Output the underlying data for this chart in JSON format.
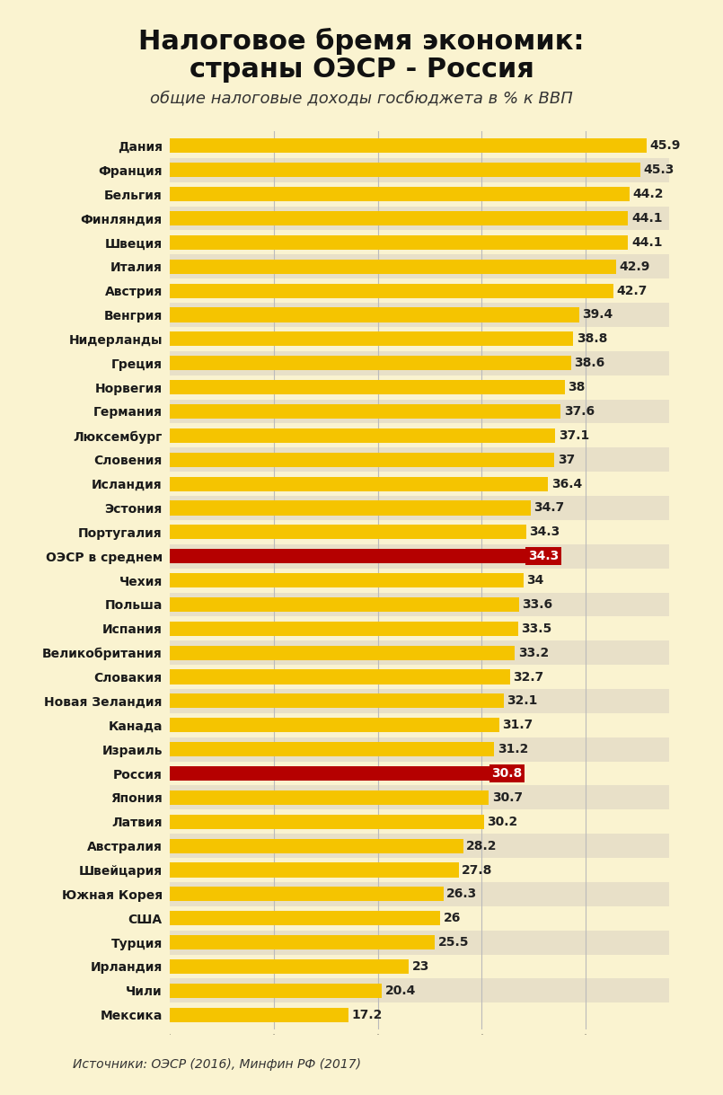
{
  "title_line1": "Налоговое бремя экономик:",
  "title_line2": "страны ОЭСР - Россия",
  "subtitle": "общие налоговые доходы госбюджета в % к ВВП",
  "footer": "Источники: ОЭСР (2016), Минфин РФ (2017)",
  "background_color": "#FAF3D0",
  "bar_color_normal": "#F5C400",
  "bar_color_special": "#B50000",
  "categories": [
    "Дания",
    "Франция",
    "Бельгия",
    "Финляндия",
    "Швеция",
    "Италия",
    "Австрия",
    "Венгрия",
    "Нидерланды",
    "Греция",
    "Норвегия",
    "Германия",
    "Люксембург",
    "Словения",
    "Исландия",
    "Эстония",
    "Португалия",
    "ОЭСР в среднем",
    "Чехия",
    "Польша",
    "Испания",
    "Великобритания",
    "Словакия",
    "Новая Зеландия",
    "Канада",
    "Израиль",
    "Россия",
    "Япония",
    "Латвия",
    "Австралия",
    "Швейцария",
    "Южная Корея",
    "США",
    "Турция",
    "Ирландия",
    "Чили",
    "Мексика"
  ],
  "values": [
    45.9,
    45.3,
    44.2,
    44.1,
    44.1,
    42.9,
    42.7,
    39.4,
    38.8,
    38.6,
    38.0,
    37.6,
    37.1,
    37.0,
    36.4,
    34.7,
    34.3,
    34.3,
    34.0,
    33.6,
    33.5,
    33.2,
    32.7,
    32.1,
    31.7,
    31.2,
    30.8,
    30.7,
    30.2,
    28.2,
    27.8,
    26.3,
    26.0,
    25.5,
    23.0,
    20.4,
    17.2
  ],
  "special_bars": [
    "ОЭСР в среднем",
    "Россия"
  ],
  "grid_color": "#BBBBBB",
  "row_bg_even": "#E8E0C8",
  "row_bg_odd": "#FAF3D0",
  "xlim_max": 48,
  "title_fontsize": 22,
  "subtitle_fontsize": 13,
  "label_fontsize": 10,
  "ytick_fontsize": 10
}
